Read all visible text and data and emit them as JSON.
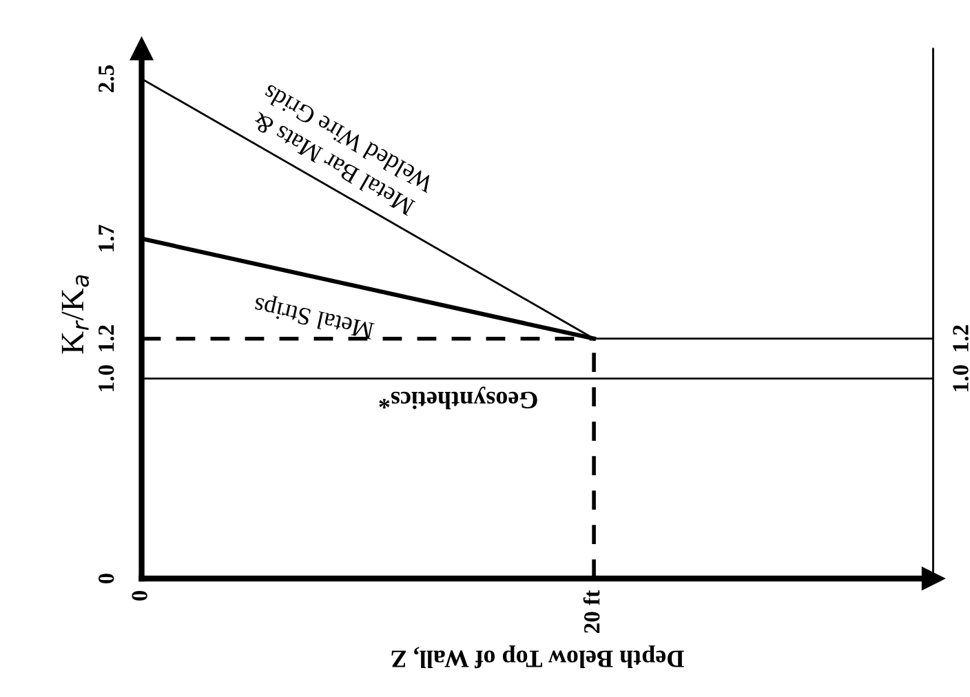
{
  "chart_data": {
    "type": "line",
    "xlabel": "Depth Below Top of Wall, Z",
    "ylabel": "K$_{r}$/K$_{a}$",
    "xlim": [
      0,
      35
    ],
    "xticks": [
      {
        "value": 0,
        "label": "0"
      },
      {
        "value": 20,
        "label": "20 ft"
      }
    ],
    "ylim": [
      0,
      2.65
    ],
    "yticks": [
      {
        "value": 0,
        "label": "0"
      },
      {
        "value": 1,
        "label": "1.0"
      },
      {
        "value": 1.2,
        "label": "1.2"
      },
      {
        "value": 1.7,
        "label": "1.7"
      },
      {
        "value": 2.5,
        "label": "2.5"
      }
    ],
    "y2lim": [
      0,
      2.65
    ],
    "y2ticks": [
      {
        "value": 1,
        "label": "1.0"
      },
      {
        "value": 1.2,
        "label": "1.2"
      }
    ],
    "grid": false,
    "marker": "none",
    "series": [
      {
        "name": "Metal Bar Mats &\nWelded Wire Grids",
        "color": "#000000",
        "x": [
          0,
          20,
          35
        ],
        "values": [
          2.5,
          1.2,
          1.2
        ],
        "line_style": "solid"
      },
      {
        "name": "Metal Strips",
        "color": "#000000",
        "x": [
          0,
          20
        ],
        "values": [
          1.7,
          1.2
        ],
        "line_style": "solid"
      },
      {
        "name": "Geosynthetics*",
        "color": "#000000",
        "x": [
          0,
          35
        ],
        "values": [
          1.0,
          1.0
        ],
        "line_style": "solid"
      }
    ],
    "ref_lines": [
      {
        "axis": "x",
        "value": 20,
        "color": "#000000",
        "line_style": "dashed"
      },
      {
        "axis": "y",
        "value": 1.2,
        "color": "#000000",
        "line_style": "dashed"
      }
    ]
  }
}
